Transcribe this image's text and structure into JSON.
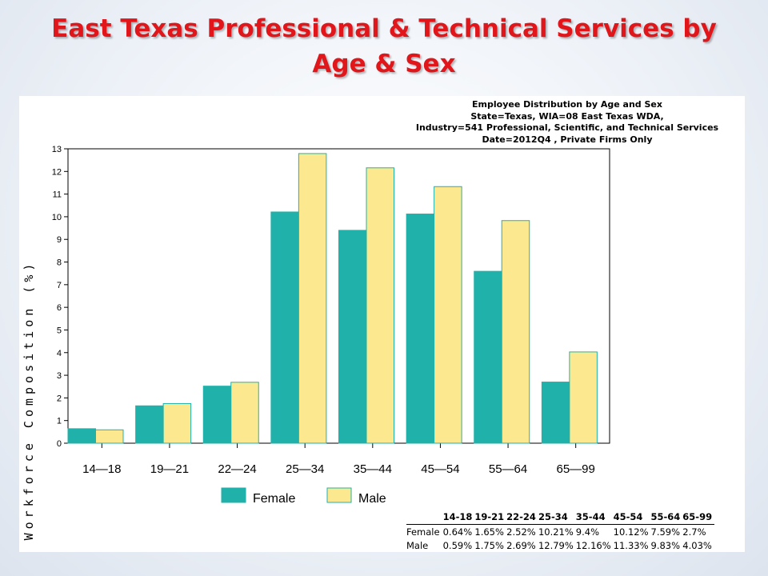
{
  "slide": {
    "title_line1": "East Texas Professional & Technical Services by",
    "title_line2": "Age & Sex"
  },
  "chart_header": {
    "line1": "Employee Distribution by Age and Sex",
    "line2": "State=Texas, WIA=08 East Texas WDA,",
    "line3": "Industry=541 Professional, Scientific, and Technical Services",
    "line4": "Date=2012Q4 , Private Firms Only"
  },
  "colors": {
    "female": "#20b2aa",
    "male": "#fce88e",
    "title": "#e0161b"
  },
  "chart_data": {
    "type": "bar",
    "ylabel": "Workforce Composition (%)",
    "xlabel": "",
    "categories": [
      "14-18",
      "19-21",
      "22-24",
      "25-34",
      "35-44",
      "45-54",
      "55-64",
      "65-99"
    ],
    "ylim": [
      0,
      13
    ],
    "yticks": [
      0,
      1,
      2,
      3,
      4,
      5,
      6,
      7,
      8,
      9,
      10,
      11,
      12,
      13
    ],
    "legend_position": "bottom",
    "series": [
      {
        "name": "Female",
        "values": [
          0.64,
          1.65,
          2.52,
          10.21,
          9.4,
          10.12,
          7.59,
          2.7
        ]
      },
      {
        "name": "Male",
        "values": [
          0.59,
          1.75,
          2.69,
          12.79,
          12.16,
          11.33,
          9.83,
          4.03
        ]
      }
    ]
  },
  "table": {
    "header": [
      "",
      "14-18",
      "19-21",
      "22-24",
      "25-34",
      "35-44",
      "45-54",
      "55-64",
      "65-99"
    ],
    "rows": [
      [
        "Female",
        "0.64%",
        "1.65%",
        "2.52%",
        "10.21%",
        "9.4%",
        "10.12%",
        "7.59%",
        "2.7%"
      ],
      [
        "Male",
        "0.59%",
        "1.75%",
        "2.69%",
        "12.79%",
        "12.16%",
        "11.33%",
        "9.83%",
        "4.03%"
      ]
    ]
  }
}
